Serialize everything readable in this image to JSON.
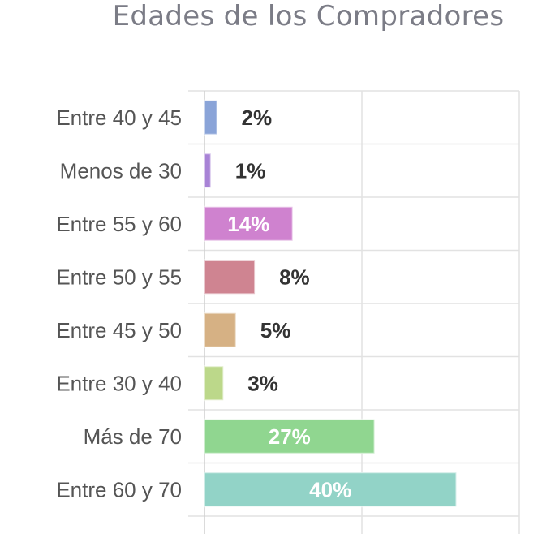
{
  "chart_data": {
    "type": "bar",
    "orientation": "horizontal",
    "title": "Edades de los Compradores",
    "xlabel": "",
    "ylabel": "",
    "categories": [
      "Entre 40 y 45",
      "Menos de 30",
      "Entre 55 y 60",
      "Entre 50 y 55",
      "Entre 45 y 50",
      "Entre 30 y 40",
      "Más de 70",
      "Entre 60 y 70"
    ],
    "values": [
      2,
      1,
      14,
      8,
      5,
      3,
      27,
      40
    ],
    "value_labels": [
      "2%",
      "1%",
      "14%",
      "8%",
      "5%",
      "3%",
      "27%",
      "40%"
    ],
    "xlim": [
      0,
      50
    ],
    "grid": true,
    "colors": [
      "#8aa4d8",
      "#a883d6",
      "#cf82cf",
      "#cf8491",
      "#d6b184",
      "#bcd88a",
      "#90d690",
      "#92d3c7"
    ],
    "label_inside_color": "#ffffff",
    "label_outside_color": "#333333"
  }
}
